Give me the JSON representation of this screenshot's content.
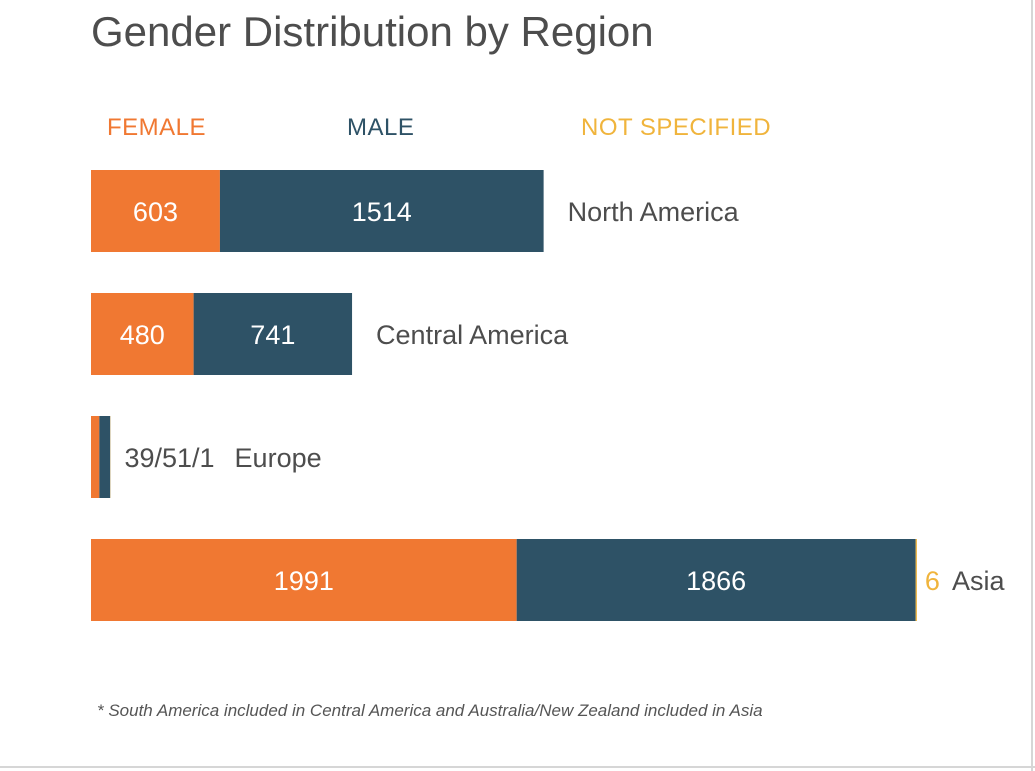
{
  "chart_data": {
    "type": "bar",
    "orientation": "horizontal",
    "stacked": true,
    "title": "Gender Distribution by Region",
    "categories": [
      "North America",
      "Central America",
      "Europe",
      "Asia"
    ],
    "series": [
      {
        "name": "FEMALE",
        "color": "#f07832",
        "values": [
          603,
          480,
          39,
          1991
        ]
      },
      {
        "name": "MALE",
        "color": "#2e5266",
        "values": [
          1514,
          741,
          51,
          1866
        ]
      },
      {
        "name": "NOT SPECIFIED",
        "color": "#f0b43c",
        "values": [
          0,
          0,
          1,
          6
        ]
      }
    ],
    "data_labels": [
      {
        "female": "603",
        "male": "1514",
        "not_specified": ""
      },
      {
        "female": "480",
        "male": "741",
        "not_specified": ""
      },
      {
        "combined": "39/51/1"
      },
      {
        "female": "1991",
        "male": "1866",
        "not_specified": "6"
      }
    ],
    "legend_position": "top",
    "footnote": "* South America included in Central America and Australia/New Zealand included in Asia"
  }
}
